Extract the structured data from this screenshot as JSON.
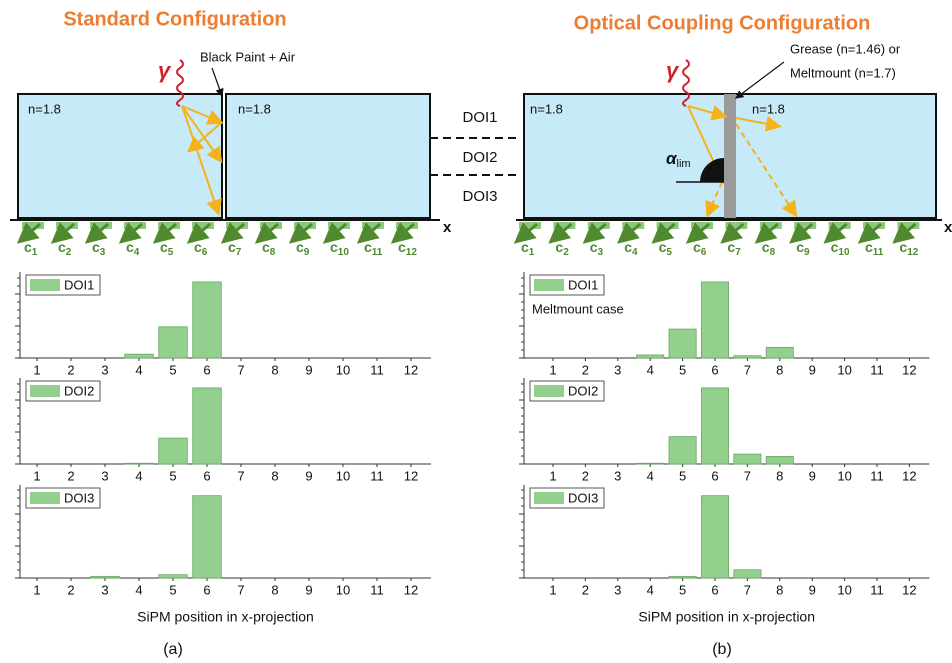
{
  "figure": {
    "panels": [
      {
        "title": "Standard Configuration",
        "caption": "(a)",
        "annotation": [
          "Black Paint + Air"
        ],
        "index_labels": [
          "n=1.8",
          "n=1.8"
        ],
        "gamma": "γ"
      },
      {
        "title": "Optical Coupling Configuration",
        "caption": "(b)",
        "annotation": [
          "Grease (n=1.46) or",
          "Meltmount (n=1.7)"
        ],
        "index_labels": [
          "n=1.8",
          "n=1.8"
        ],
        "gamma": "γ",
        "angle_label": "α",
        "angle_subscript": "lim"
      }
    ],
    "doi_labels": [
      "DOI1",
      "DOI2",
      "DOI3"
    ],
    "axis_label": "x",
    "sipm_symbol": "c",
    "sipm_indices": [
      "1",
      "2",
      "3",
      "4",
      "5",
      "6",
      "7",
      "8",
      "9",
      "10",
      "11",
      "12"
    ]
  },
  "chart_data": [
    {
      "type": "bar",
      "categories": [
        "1",
        "2",
        "3",
        "4",
        "5",
        "6",
        "7",
        "8",
        "9",
        "10",
        "11",
        "12"
      ],
      "ylim": [
        0,
        1.13
      ],
      "series": [
        {
          "name": "DOI1",
          "color": "#93d08e",
          "values": [
            0,
            0,
            0,
            0.05,
            0.41,
            1,
            0,
            0,
            0,
            0,
            0,
            0
          ]
        }
      ]
    },
    {
      "type": "bar",
      "categories": [
        "1",
        "2",
        "3",
        "4",
        "5",
        "6",
        "7",
        "8",
        "9",
        "10",
        "11",
        "12"
      ],
      "ylim": [
        0,
        1.13
      ],
      "series": [
        {
          "name": "DOI2",
          "color": "#93d08e",
          "values": [
            0,
            0,
            0,
            0.01,
            0.34,
            1,
            0,
            0,
            0,
            0,
            0,
            0
          ]
        }
      ]
    },
    {
      "type": "bar",
      "categories": [
        "1",
        "2",
        "3",
        "4",
        "5",
        "6",
        "7",
        "8",
        "9",
        "10",
        "11",
        "12"
      ],
      "ylim": [
        0,
        1.13
      ],
      "x_label": "SiPM position in x-projection",
      "series": [
        {
          "name": "DOI3",
          "color": "#93d08e",
          "values": [
            0,
            0,
            0.02,
            0,
            0.04,
            1,
            0,
            0,
            0,
            0,
            0,
            0
          ]
        }
      ]
    },
    {
      "type": "bar",
      "categories": [
        "1",
        "2",
        "3",
        "4",
        "5",
        "6",
        "7",
        "8",
        "9",
        "10",
        "11",
        "12"
      ],
      "ylim": [
        0,
        1.13
      ],
      "annotation": "Meltmount case",
      "series": [
        {
          "name": "DOI1",
          "color": "#93d08e",
          "values": [
            0,
            0,
            0,
            0.04,
            0.38,
            1,
            0.03,
            0.14,
            0,
            0,
            0,
            0
          ]
        }
      ]
    },
    {
      "type": "bar",
      "categories": [
        "1",
        "2",
        "3",
        "4",
        "5",
        "6",
        "7",
        "8",
        "9",
        "10",
        "11",
        "12"
      ],
      "ylim": [
        0,
        1.13
      ],
      "series": [
        {
          "name": "DOI2",
          "color": "#93d08e",
          "values": [
            0,
            0,
            0,
            0.01,
            0.36,
            1,
            0.13,
            0.1,
            0,
            0,
            0,
            0
          ]
        }
      ]
    },
    {
      "type": "bar",
      "categories": [
        "1",
        "2",
        "3",
        "4",
        "5",
        "6",
        "7",
        "8",
        "9",
        "10",
        "11",
        "12"
      ],
      "ylim": [
        0,
        1.13
      ],
      "x_label": "SiPM position in x-projection",
      "series": [
        {
          "name": "DOI3",
          "color": "#93d08e",
          "values": [
            0,
            0,
            0,
            0,
            0.02,
            1,
            0.1,
            0,
            0,
            0,
            0,
            0
          ]
        }
      ]
    }
  ]
}
